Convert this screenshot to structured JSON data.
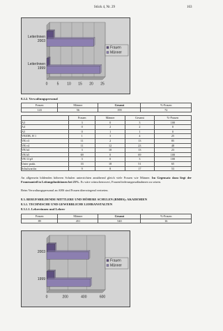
{
  "header": {
    "title": "Stück 4, Nr. 29",
    "page": "163"
  },
  "chart_data": [
    {
      "type": "barh",
      "categories": [
        "LeiterInnen 2003",
        "LeiterInnen 1999"
      ],
      "series": [
        {
          "name": "Frauen",
          "color": "#5e4f80",
          "values": [
            3,
            1
          ]
        },
        {
          "name": "Männer",
          "color": "#8c7fb0",
          "values": [
            21,
            24
          ]
        }
      ],
      "xlim": [
        0,
        25
      ],
      "xticks": [
        0,
        5,
        10,
        15,
        20,
        25
      ],
      "grid": true,
      "legend": "right"
    },
    {
      "type": "barh",
      "categories": [
        "2003",
        "1999"
      ],
      "series": [
        {
          "name": "Frauen",
          "color": "#5e4f80",
          "values": [
            89,
            80
          ]
        },
        {
          "name": "Männer",
          "color": "#8c7fb0",
          "values": [
            451,
            470
          ]
        }
      ],
      "xlim": [
        0,
        600
      ],
      "xticks": [
        0,
        200,
        400,
        600
      ],
      "grid": true,
      "legend": "right"
    }
  ],
  "section1": {
    "heading": "8.2.2. Verwaltungspersonal"
  },
  "table1": {
    "header": [
      "Frauen",
      "Männer",
      "Gesamt",
      "%-Frauen"
    ],
    "rows": [
      [
        "143",
        "56",
        "199",
        "72"
      ]
    ]
  },
  "table2": {
    "header": [
      "",
      "Frauen",
      "Männer",
      "Gesamt",
      "%-Frauen"
    ],
    "rows": [
      [
        "A3",
        "3",
        "0",
        "3",
        "100"
      ],
      [
        "A4",
        "0",
        "2",
        "2",
        "0"
      ],
      [
        "A5",
        "0",
        "1",
        "1",
        "0"
      ],
      [
        "VB/DB, H 1",
        "1",
        "3",
        "4",
        "25"
      ],
      [
        "VB v3",
        "11",
        "2",
        "13",
        "85"
      ],
      [
        "VB v4",
        "11",
        "12",
        "23",
        "48"
      ],
      [
        "VB h4",
        "3",
        "10",
        "13",
        "23"
      ],
      [
        "VB h5",
        "69",
        "0",
        "69",
        "100"
      ],
      [
        "VB 11/p5",
        "3",
        "0",
        "3",
        "100"
      ],
      [
        "Unter prakt.",
        "33",
        "18",
        "51",
        "65"
      ],
      [
        "Schulwart/in",
        "9",
        "8",
        "17",
        "53"
      ]
    ]
  },
  "paragraph1": {
    "parts": [
      "An allgemein bildenden höheren Schulen unterrichten annähernd gleich viele Frauen wie Männer. ",
      "Im Gegensatz dazu liegt der Frauenanteil in Leitungsfunktionen bei 25%.",
      " Es wäre wünschenswert, Frauenförderungsmaßnahmen zu setzen."
    ]
  },
  "paragraph2": "Beim Verwaltungspersonal an AHS sind Frauen überwiegend vertreten.",
  "section2": {
    "heading": "8.3. BERUFSBILDENDE MITTLERE UND HÖHERE SCHULEN (BMHS); AKADEMIEN",
    "subheading": "8.3.1. TECHNISCHE UND GEWERBLICHE LEHRANSTALTEN",
    "subsubheading": "8.3.1.1. Lehrerinnen und Lehrer"
  },
  "table3": {
    "header": [
      "Frauen",
      "Männer",
      "Gesamt",
      "%-Frauen"
    ],
    "rows": [
      [
        "89",
        "451",
        "540",
        "16"
      ]
    ]
  }
}
